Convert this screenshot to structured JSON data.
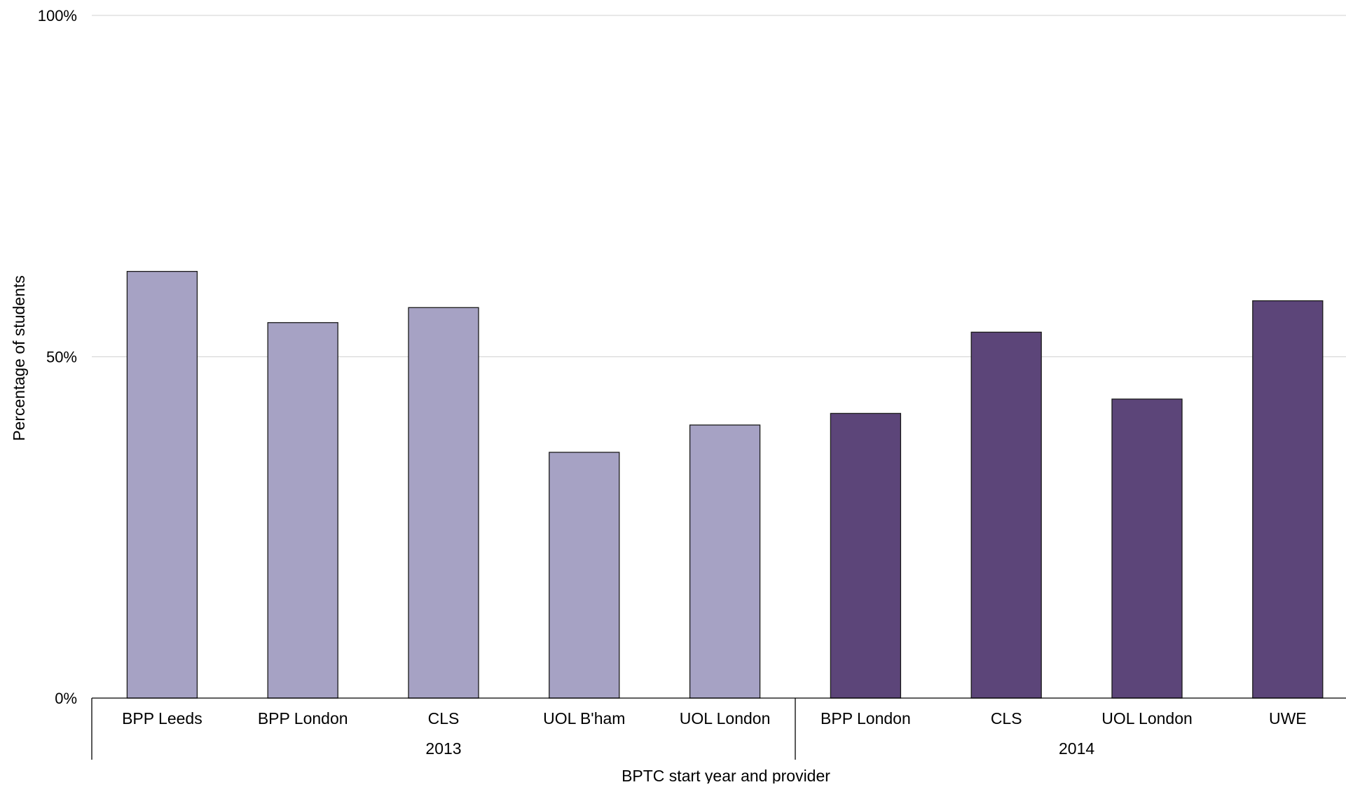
{
  "chart_data": {
    "type": "bar",
    "title": "",
    "xlabel": "BPTC start year and provider",
    "ylabel": "Percentage of students",
    "ylim": [
      0,
      100
    ],
    "yticks": [
      0,
      50,
      100
    ],
    "ytick_labels": [
      "0%",
      "50%",
      "100%"
    ],
    "grid": true,
    "legend": "none",
    "groups": [
      {
        "label": "2013",
        "color": "#a6a2c4",
        "categories": [
          "BPP Leeds",
          "BPP London",
          "CLS",
          "UOL B'ham",
          "UOL London"
        ],
        "values": [
          62.5,
          55,
          57.2,
          36,
          40
        ]
      },
      {
        "label": "2014",
        "color": "#5c4579",
        "categories": [
          "BPP London",
          "CLS",
          "UOL London",
          "UWE"
        ],
        "values": [
          41.7,
          53.6,
          43.8,
          58.2
        ]
      }
    ]
  }
}
